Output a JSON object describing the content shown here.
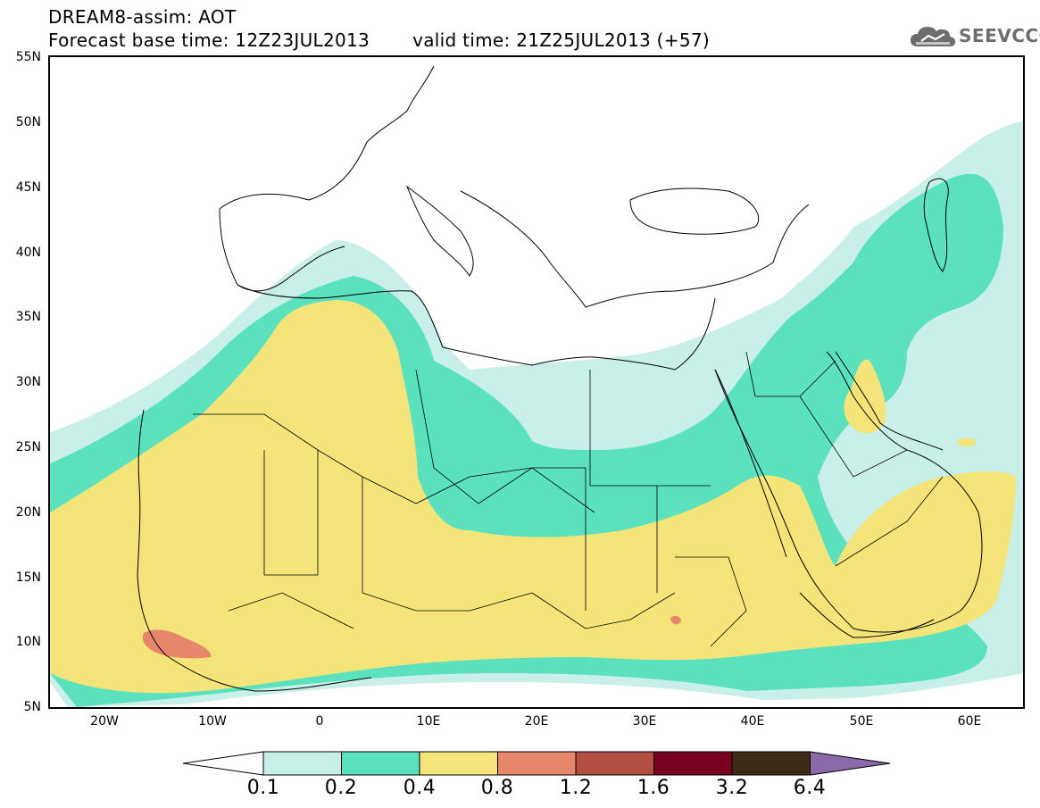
{
  "header": {
    "title_line1": "DREAM8-assim: AOT",
    "title_line2_left": "Forecast base time: 12Z23JUL2013",
    "title_line2_right": "valid time: 21Z25JUL2013 (+57)"
  },
  "logo": {
    "text": "SEEVCCC",
    "icon": "cloud-icon"
  },
  "map": {
    "region": "North Africa, Mediterranean and Middle East",
    "lon_range": [
      -25,
      65
    ],
    "lat_range": [
      5,
      55
    ],
    "field_colors": {
      "c01": "#c9efe9",
      "c02": "#5ce1bf",
      "c04": "#f4e47a",
      "c08": "#e6866b",
      "c12": "#b24e42"
    },
    "y_axis_labels": [
      "55N",
      "50N",
      "45N",
      "40N",
      "35N",
      "30N",
      "25N",
      "20N",
      "15N",
      "10N",
      "5N"
    ],
    "x_axis_labels": [
      "20W",
      "10W",
      "0",
      "10E",
      "20E",
      "30E",
      "40E",
      "50E",
      "60E"
    ]
  },
  "colorbar": {
    "labels": [
      "0.1",
      "0.2",
      "0.4",
      "0.8",
      "1.2",
      "1.6",
      "3.2",
      "6.4"
    ],
    "colors": [
      "#ffffff",
      "#c9efe9",
      "#5ce1bf",
      "#f4e47a",
      "#e6866b",
      "#b24e42",
      "#7a0020",
      "#3d2a17",
      "#8a6aa8"
    ]
  }
}
